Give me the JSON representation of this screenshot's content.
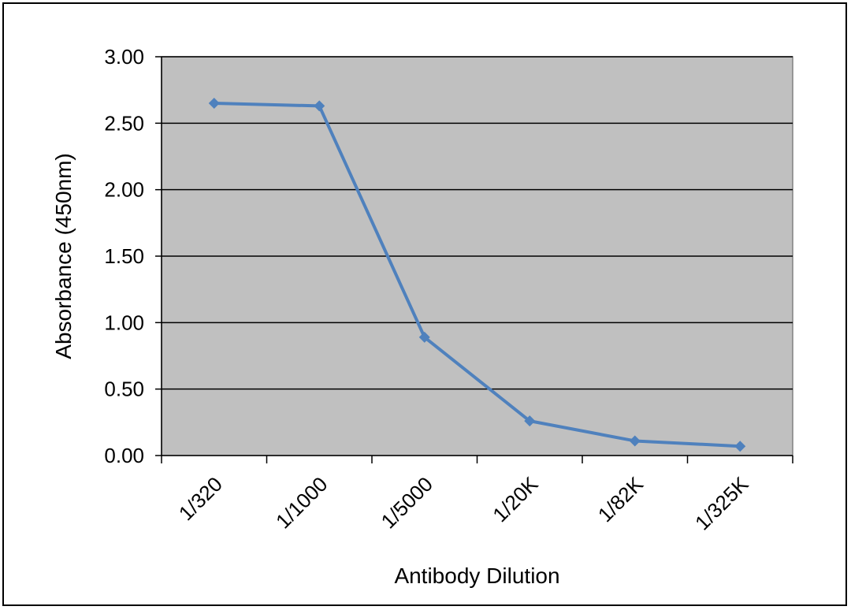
{
  "chart_data": {
    "type": "line",
    "title": "",
    "xlabel": "Antibody Dilution",
    "ylabel": "Absorbance (450nm)",
    "categories": [
      "1/320",
      "1/1000",
      "1/5000",
      "1/20K",
      "1/82K",
      "1/325K"
    ],
    "series": [
      {
        "values": [
          2.65,
          2.63,
          0.89,
          0.26,
          0.11,
          0.07
        ]
      }
    ],
    "ylim": [
      0,
      3.0
    ],
    "yticks": [
      "0.00",
      "0.50",
      "1.00",
      "1.50",
      "2.00",
      "2.50",
      "3.00"
    ],
    "grid": true,
    "legend": "none",
    "colors": {
      "plot_background": "#c0c0c0",
      "line": "#4f81bd",
      "gridline": "#000000"
    }
  }
}
